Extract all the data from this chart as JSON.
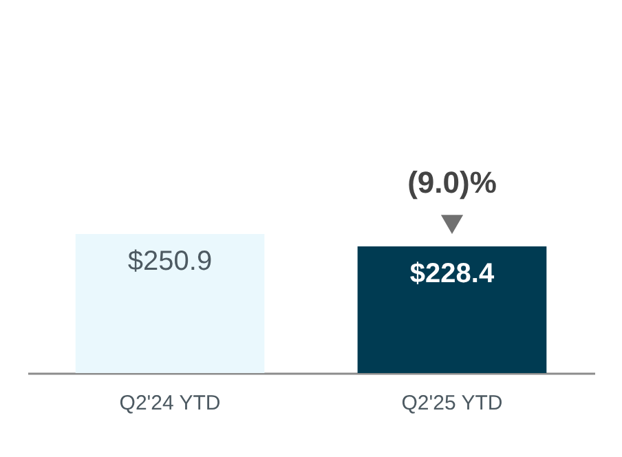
{
  "chart_data": {
    "type": "bar",
    "categories": [
      "Q2'24 YTD",
      "Q2'25 YTD"
    ],
    "values": [
      250.9,
      228.4
    ],
    "colors": [
      "#eaf8fd",
      "#003b52"
    ],
    "value_labels": [
      "$250.9",
      "$228.4"
    ],
    "annotations": [
      {
        "text": "(9.0)%",
        "x": "Q2'25 YTD",
        "y": 228.4
      }
    ]
  }
}
